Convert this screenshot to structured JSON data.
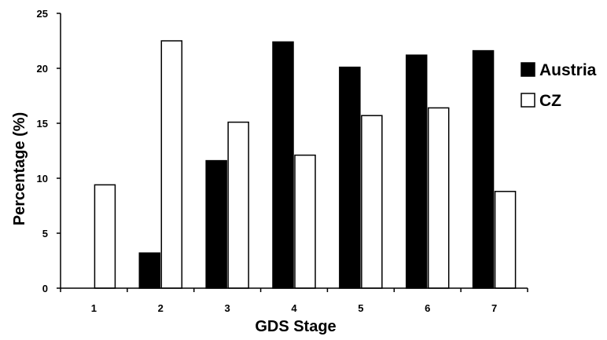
{
  "chart_data": {
    "type": "bar",
    "title": "",
    "xlabel": "GDS Stage",
    "ylabel": "Percentage (%)",
    "categories": [
      "1",
      "2",
      "3",
      "4",
      "5",
      "6",
      "7"
    ],
    "series": [
      {
        "name": "Austria",
        "color": "#000000",
        "values": [
          0,
          3.2,
          11.6,
          22.4,
          20.1,
          21.2,
          21.6
        ]
      },
      {
        "name": "CZ",
        "color": "#ffffff",
        "values": [
          9.4,
          22.5,
          15.1,
          12.1,
          15.7,
          16.4,
          8.8
        ]
      }
    ],
    "yticks": [
      "0",
      "5",
      "10",
      "15",
      "20",
      "25"
    ],
    "ylim": [
      0,
      25
    ],
    "grid": false,
    "legend_position": "right"
  }
}
